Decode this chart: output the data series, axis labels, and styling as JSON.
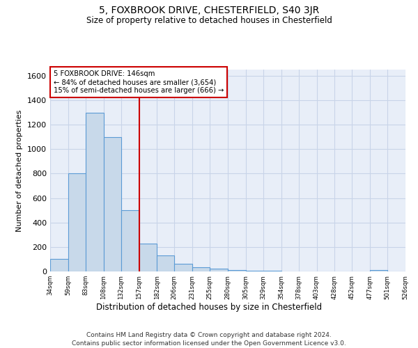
{
  "title": "5, FOXBROOK DRIVE, CHESTERFIELD, S40 3JR",
  "subtitle": "Size of property relative to detached houses in Chesterfield",
  "xlabel": "Distribution of detached houses by size in Chesterfield",
  "ylabel": "Number of detached properties",
  "footer_line1": "Contains HM Land Registry data © Crown copyright and database right 2024.",
  "footer_line2": "Contains public sector information licensed under the Open Government Licence v3.0.",
  "bar_edges": [
    34,
    59,
    83,
    108,
    132,
    157,
    182,
    206,
    231,
    255,
    280,
    305,
    329,
    354,
    378,
    403,
    428,
    452,
    477,
    501,
    526
  ],
  "bar_heights": [
    100,
    800,
    1300,
    1100,
    500,
    230,
    130,
    65,
    35,
    20,
    10,
    5,
    3,
    2,
    1,
    0,
    0,
    0,
    10,
    0,
    0
  ],
  "bar_color": "#c8d9ea",
  "bar_edge_color": "#5b9bd5",
  "vline_x": 157,
  "vline_color": "#cc0000",
  "ylim": [
    0,
    1650
  ],
  "yticks": [
    0,
    200,
    400,
    600,
    800,
    1000,
    1200,
    1400,
    1600
  ],
  "annotation_title": "5 FOXBROOK DRIVE: 146sqm",
  "annotation_line1": "← 84% of detached houses are smaller (3,654)",
  "annotation_line2": "15% of semi-detached houses are larger (666) →",
  "annotation_box_color": "#cc0000",
  "grid_color": "#c8d4e8",
  "bg_color": "#ffffff",
  "plot_bg_color": "#e8eef8"
}
